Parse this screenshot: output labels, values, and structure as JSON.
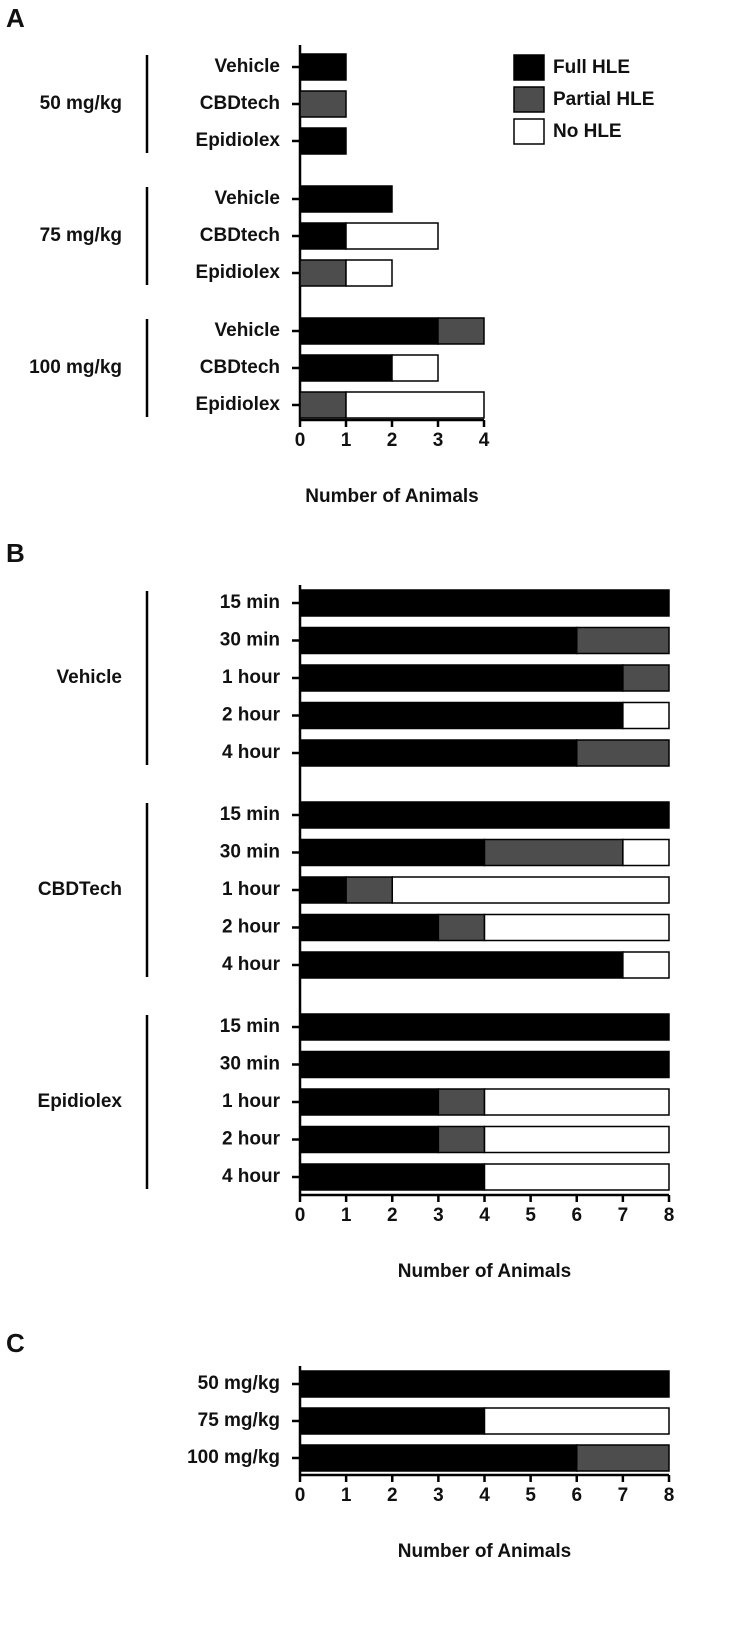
{
  "chart_data": [
    {
      "type": "bar",
      "orientation": "horizontal",
      "stacked": true,
      "panel": "A",
      "groups": [
        {
          "name": "50 mg/kg",
          "categories": [
            "Vehicle",
            "CBDtech",
            "Epidiolex"
          ]
        },
        {
          "name": "75 mg/kg",
          "categories": [
            "Vehicle",
            "CBDtech",
            "Epidiolex"
          ]
        },
        {
          "name": "100 mg/kg",
          "categories": [
            "Vehicle",
            "CBDtech",
            "Epidiolex"
          ]
        }
      ],
      "series": [
        {
          "name": "Full HLE",
          "color": "#000000",
          "values": [
            1,
            0,
            1,
            2,
            1,
            0,
            3,
            2,
            0
          ]
        },
        {
          "name": "Partial HLE",
          "color": "#4d4d4d",
          "values": [
            0,
            1,
            0,
            0,
            0,
            1,
            1,
            0,
            1
          ]
        },
        {
          "name": "No HLE",
          "color": "#ffffff",
          "values": [
            0,
            0,
            0,
            0,
            2,
            1,
            0,
            1,
            3
          ]
        }
      ],
      "xlabel": "Number of Animals",
      "xlim": [
        0,
        4
      ],
      "xticks": [
        0,
        1,
        2,
        3,
        4
      ],
      "legend": "upper right"
    },
    {
      "type": "bar",
      "orientation": "horizontal",
      "stacked": true,
      "panel": "B",
      "groups": [
        {
          "name": "Vehicle",
          "categories": [
            "15 min",
            "30 min",
            "1 hour",
            "2 hour",
            "4 hour"
          ]
        },
        {
          "name": "CBDTech",
          "categories": [
            "15 min",
            "30 min",
            "1 hour",
            "2 hour",
            "4 hour"
          ]
        },
        {
          "name": "Epidiolex",
          "categories": [
            "15 min",
            "30 min",
            "1 hour",
            "2 hour",
            "4 hour"
          ]
        }
      ],
      "series": [
        {
          "color": "#000000",
          "values": [
            8,
            6,
            7,
            7,
            6,
            8,
            4,
            1,
            3,
            7,
            8,
            8,
            3,
            3,
            4
          ]
        },
        {
          "color": "#4d4d4d",
          "values": [
            0,
            2,
            1,
            0,
            2,
            0,
            3,
            1,
            1,
            0,
            0,
            0,
            1,
            1,
            0
          ]
        },
        {
          "color": "#ffffff",
          "values": [
            0,
            0,
            0,
            1,
            0,
            0,
            1,
            6,
            4,
            1,
            0,
            0,
            4,
            4,
            4
          ]
        }
      ],
      "xlabel": "Number of Animals",
      "xlim": [
        0,
        8
      ],
      "xticks": [
        0,
        1,
        2,
        3,
        4,
        5,
        6,
        7,
        8
      ]
    },
    {
      "type": "bar",
      "orientation": "horizontal",
      "stacked": true,
      "panel": "C",
      "categories": [
        "50 mg/kg",
        "75 mg/kg",
        "100 mg/kg"
      ],
      "series": [
        {
          "color": "#000000",
          "values": [
            8,
            4,
            6
          ]
        },
        {
          "color": "#4d4d4d",
          "values": [
            0,
            0,
            2
          ]
        },
        {
          "color": "#ffffff",
          "values": [
            0,
            4,
            0
          ]
        }
      ],
      "xlabel": "Number of Animals",
      "xlim": [
        0,
        8
      ],
      "xticks": [
        0,
        1,
        2,
        3,
        4,
        5,
        6,
        7,
        8
      ]
    }
  ]
}
